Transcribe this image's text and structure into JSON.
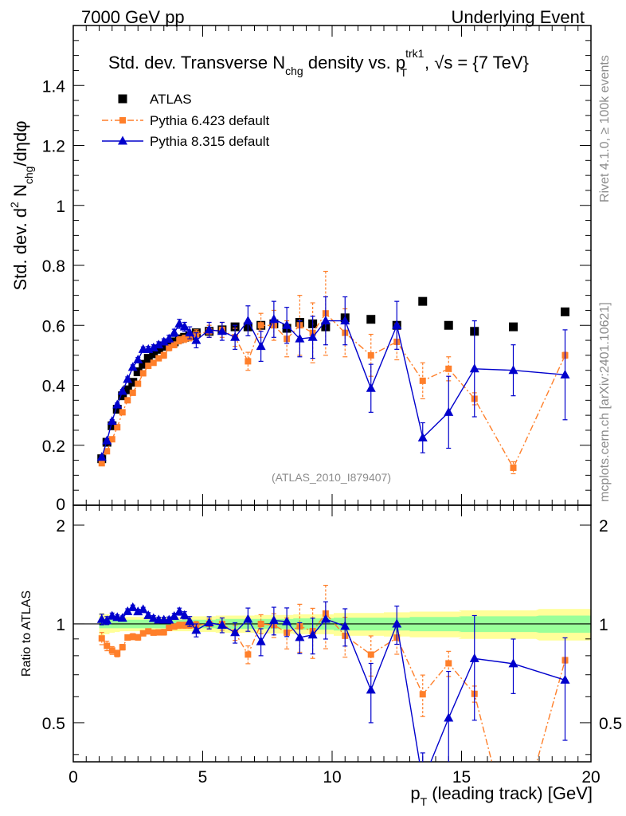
{
  "header": {
    "left": "7000 GeV pp",
    "right": "Underlying Event"
  },
  "side_labels": {
    "rivet": "Rivet 4.1.0, ≥ 100k events",
    "mcplots": "mcplots.cern.ch [arXiv:2401.10621]"
  },
  "watermark": "(ATLAS_2010_I879407)",
  "colors": {
    "data": "#000000",
    "pythia6": "#ff7f2a",
    "pythia8": "#0000cc",
    "band_inner": "#99ff99",
    "band_outer": "#ffff99"
  },
  "chart_data": {
    "type": "scatter",
    "title": "Std. dev. Transverse N_chg density vs. p_T^trk1, √s = {7 TeV}",
    "title_parts": {
      "a": "Std. dev. Transverse N",
      "a_sub": "chg",
      "b": " density vs. p",
      "b_sup": "trk1",
      "b_sub": "T",
      "c": ", √s = {7 TeV}"
    },
    "ylabel": "Std. dev. d² N_chg/dηdφ",
    "ylabel_parts": {
      "a": "Std. dev. d",
      "sup": "2",
      "b": " N",
      "sub": "chg",
      "c": "/dηdφ"
    },
    "xlabel": "p_T (leading track) [GeV]",
    "xlabel_parts": {
      "a": "p",
      "sub": "T",
      "b": " (leading track) [GeV]"
    },
    "ratio_ylabel": "Ratio to ATLAS",
    "xlim": [
      0,
      20
    ],
    "ylim": [
      0,
      1.6
    ],
    "ratio_ylim": [
      0.38,
      2.3
    ],
    "xticks": [
      0,
      5,
      10,
      15,
      20
    ],
    "yticks": [
      0.2,
      0.4,
      0.6,
      0.8,
      1,
      1.2,
      1.4
    ],
    "yticks_label": [
      "0.2",
      "0.4",
      "0.6",
      "0.8",
      "1",
      "1.2",
      "1.4"
    ],
    "ratio_yticks": [
      0.5,
      1,
      2
    ],
    "ratio_yticks_label": [
      "0.5",
      "1",
      "2"
    ],
    "main_zero_label": "0",
    "legend_position": "top-left",
    "x": [
      1.1,
      1.3,
      1.5,
      1.7,
      1.9,
      2.1,
      2.3,
      2.5,
      2.7,
      2.9,
      3.1,
      3.3,
      3.5,
      3.7,
      3.9,
      4.1,
      4.3,
      4.5,
      4.75,
      5.25,
      5.75,
      6.25,
      6.75,
      7.25,
      7.75,
      8.25,
      8.75,
      9.25,
      9.75,
      10.5,
      11.5,
      12.5,
      13.5,
      14.5,
      15.5,
      17.0,
      19.0
    ],
    "series": [
      {
        "name": "ATLAS",
        "style": "data",
        "values": [
          0.155,
          0.21,
          0.265,
          0.32,
          0.365,
          0.385,
          0.41,
          0.445,
          0.47,
          0.49,
          0.505,
          0.52,
          0.53,
          0.54,
          0.545,
          0.555,
          0.56,
          0.565,
          0.575,
          0.58,
          0.585,
          0.595,
          0.595,
          0.6,
          0.605,
          0.59,
          0.61,
          0.605,
          0.595,
          0.625,
          0.62,
          0.6,
          0.68,
          0.6,
          0.58,
          0.595,
          0.645
        ]
      },
      {
        "name": "Pythia 6.423 default",
        "style": "pythia6",
        "values": [
          0.14,
          0.18,
          0.22,
          0.26,
          0.31,
          0.35,
          0.375,
          0.405,
          0.44,
          0.465,
          0.475,
          0.49,
          0.5,
          0.525,
          0.535,
          0.55,
          0.555,
          0.56,
          0.57,
          0.58,
          0.585,
          0.56,
          0.48,
          0.6,
          0.6,
          0.555,
          0.6,
          0.575,
          0.64,
          0.575,
          0.5,
          0.545,
          0.415,
          0.455,
          0.355,
          0.125,
          0.5
        ],
        "errors": [
          0.006,
          0.006,
          0.006,
          0.006,
          0.006,
          0.006,
          0.008,
          0.008,
          0.008,
          0.008,
          0.008,
          0.008,
          0.01,
          0.01,
          0.01,
          0.012,
          0.012,
          0.012,
          0.015,
          0.02,
          0.025,
          0.03,
          0.03,
          0.04,
          0.05,
          0.06,
          0.1,
          0.1,
          0.14,
          0.08,
          0.07,
          0.06,
          0.06,
          0.04,
          0.02,
          0.02,
          0.01
        ]
      },
      {
        "name": "Pythia 8.315 default",
        "style": "pythia8",
        "values": [
          0.16,
          0.215,
          0.28,
          0.335,
          0.38,
          0.42,
          0.46,
          0.485,
          0.52,
          0.52,
          0.525,
          0.535,
          0.545,
          0.555,
          0.575,
          0.605,
          0.595,
          0.575,
          0.55,
          0.585,
          0.58,
          0.56,
          0.615,
          0.53,
          0.62,
          0.6,
          0.555,
          0.56,
          0.615,
          0.615,
          0.39,
          0.6,
          0.225,
          0.31,
          0.455,
          0.45,
          0.435
        ],
        "errors": [
          0.006,
          0.006,
          0.006,
          0.006,
          0.006,
          0.008,
          0.008,
          0.008,
          0.008,
          0.01,
          0.01,
          0.01,
          0.01,
          0.012,
          0.012,
          0.015,
          0.015,
          0.02,
          0.025,
          0.025,
          0.03,
          0.04,
          0.05,
          0.05,
          0.06,
          0.06,
          0.06,
          0.07,
          0.08,
          0.08,
          0.08,
          0.08,
          0.05,
          0.12,
          0.16,
          0.085,
          0.15
        ]
      }
    ],
    "band": {
      "inner": [
        0.03,
        0.03,
        0.03,
        0.03,
        0.03,
        0.03,
        0.03,
        0.03,
        0.03,
        0.03,
        0.03,
        0.03,
        0.03,
        0.03,
        0.03,
        0.03,
        0.03,
        0.03,
        0.03,
        0.03,
        0.035,
        0.035,
        0.035,
        0.035,
        0.035,
        0.035,
        0.04,
        0.04,
        0.04,
        0.045,
        0.045,
        0.045,
        0.05,
        0.05,
        0.055,
        0.055,
        0.06
      ],
      "outer": [
        0.08,
        0.07,
        0.06,
        0.055,
        0.05,
        0.05,
        0.05,
        0.05,
        0.05,
        0.05,
        0.05,
        0.05,
        0.05,
        0.05,
        0.05,
        0.05,
        0.05,
        0.05,
        0.055,
        0.055,
        0.06,
        0.06,
        0.06,
        0.065,
        0.065,
        0.065,
        0.07,
        0.07,
        0.07,
        0.08,
        0.08,
        0.085,
        0.09,
        0.09,
        0.1,
        0.1,
        0.11
      ]
    }
  }
}
